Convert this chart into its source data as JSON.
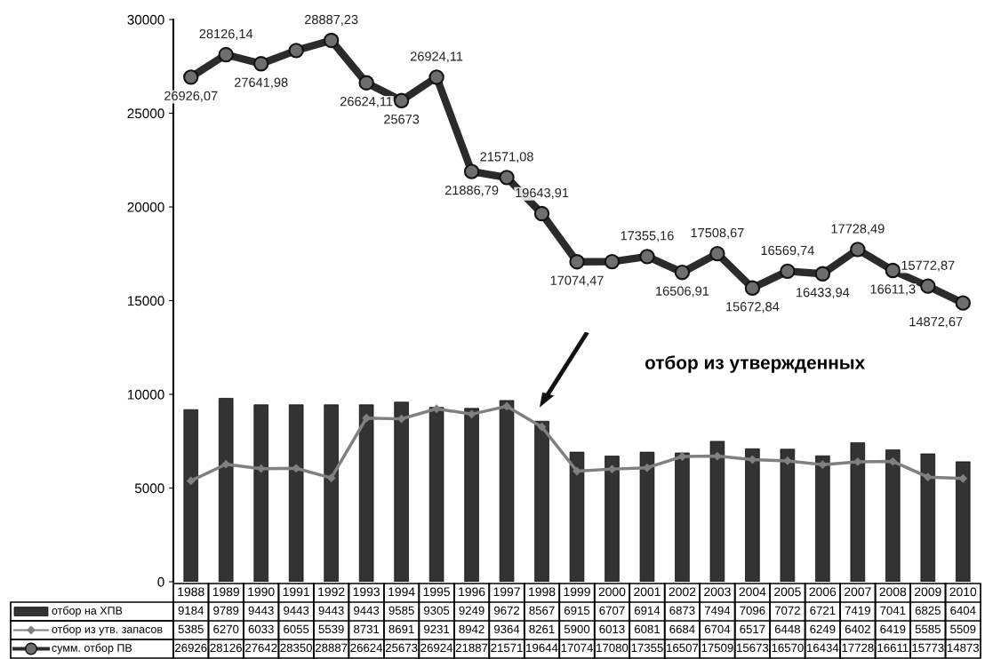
{
  "chart_data": {
    "type": "bar",
    "categories": [
      "1988",
      "1989",
      "1990",
      "1991",
      "1992",
      "1993",
      "1994",
      "1995",
      "1996",
      "1997",
      "1998",
      "1999",
      "2000",
      "2001",
      "2002",
      "2003",
      "2004",
      "2005",
      "2006",
      "2007",
      "2008",
      "2009",
      "2010"
    ],
    "series": [
      {
        "name": "отбор на ХПВ",
        "color": "#333333",
        "values": [
          9184,
          9789,
          9443,
          9443,
          9443,
          9443,
          9585,
          9305,
          9249,
          9672,
          8567,
          6915,
          6707,
          6914,
          6873,
          7494,
          7096,
          7072,
          6721,
          7419,
          7041,
          6825,
          6404
        ]
      },
      {
        "name": "отбор из утв. запасов",
        "type": "line",
        "color": "#808080",
        "marker": "diamond",
        "values": [
          5385,
          6270,
          6033,
          6055,
          5539,
          8731,
          8691,
          9231,
          8942,
          9364,
          8261,
          5900,
          6013,
          6081,
          6684,
          6704,
          6517,
          6448,
          6249,
          6402,
          6419,
          5585,
          5509
        ]
      },
      {
        "name": "сумм. отбор ПВ",
        "type": "line",
        "color": "#2b2b2b",
        "marker": "circle",
        "values": [
          26926.07,
          28126.14,
          27641.98,
          28350,
          28887.23,
          26624.11,
          25673,
          26924.11,
          21886.79,
          21571.08,
          19643.91,
          17074.47,
          17080,
          17355.16,
          16506.91,
          17508.67,
          15672.84,
          16569.74,
          16433.94,
          17728.49,
          16611.3,
          15772.87,
          14872.67
        ],
        "value_labels": [
          "26926",
          "28126",
          "27642",
          "28350",
          "28887",
          "26624",
          "25673",
          "26924",
          "21887",
          "21571",
          "19644",
          "17074",
          "17080",
          "17355",
          "16507",
          "17509",
          "15673",
          "16570",
          "16434",
          "17728",
          "16611",
          "15773",
          "14873"
        ]
      }
    ],
    "ylim": [
      0,
      30000
    ],
    "yticks": [
      0,
      5000,
      10000,
      15000,
      20000,
      25000,
      30000
    ],
    "data_labels": true,
    "grid": false,
    "legend": "bottom",
    "annotations": [
      {
        "text": "26926,07",
        "x": "1988",
        "y": 26926.07
      },
      {
        "text": "28126,14",
        "x": "1989",
        "y": 28126.14
      },
      {
        "text": "27641,98",
        "x": "1990",
        "y": 27641.98
      },
      {
        "text": "28887,23",
        "x": "1992",
        "y": 28887.23
      },
      {
        "text": "26624,11",
        "x": "1993",
        "y": 26624.11
      },
      {
        "text": "25673",
        "x": "1994",
        "y": 25673
      },
      {
        "text": "26924,11",
        "x": "1995",
        "y": 26924.11
      },
      {
        "text": "21886,79",
        "x": "1996",
        "y": 21886.79
      },
      {
        "text": "21571,08",
        "x": "1997",
        "y": 21571.08
      },
      {
        "text": "19643,91",
        "x": "1998",
        "y": 19643.91
      },
      {
        "text": "17074,47",
        "x": "1999",
        "y": 17074.47
      },
      {
        "text": "17355,16",
        "x": "2001",
        "y": 17355.16
      },
      {
        "text": "16506,91",
        "x": "2002",
        "y": 16506.91
      },
      {
        "text": "17508,67",
        "x": "2003",
        "y": 17508.67
      },
      {
        "text": "15672,84",
        "x": "2004",
        "y": 15672.84
      },
      {
        "text": "16569,74",
        "x": "2005",
        "y": 16569.74
      },
      {
        "text": "16433,94",
        "x": "2006",
        "y": 16433.94
      },
      {
        "text": "17728,49",
        "x": "2007",
        "y": 17728.49
      },
      {
        "text": "16611,3",
        "x": "2008",
        "y": 16611.3
      },
      {
        "text": "15772,87",
        "x": "2009",
        "y": 15772.87
      },
      {
        "text": "14872,67",
        "x": "2010",
        "y": 14872.67
      },
      "отбор из утвержденных"
    ]
  }
}
